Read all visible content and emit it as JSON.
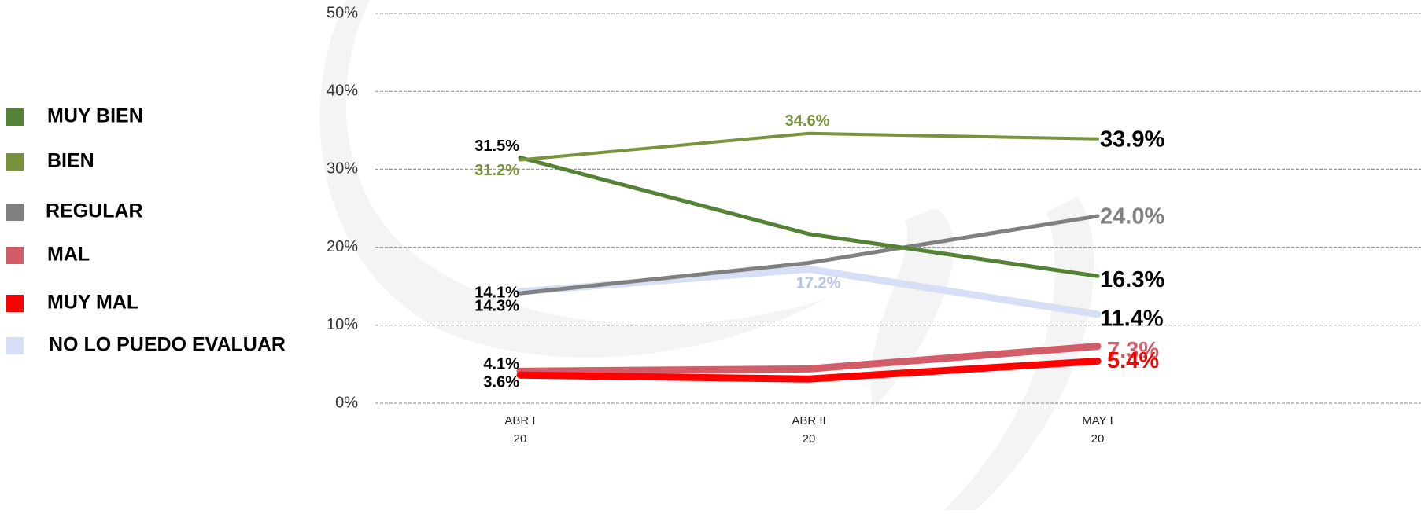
{
  "chart_data": {
    "type": "line",
    "categories": [
      [
        "ABR I",
        "20"
      ],
      [
        "ABR II",
        "20"
      ],
      [
        "MAY I",
        "20"
      ]
    ],
    "ylim": [
      0,
      50
    ],
    "yticks": [
      {
        "value": 0,
        "label": "0%"
      },
      {
        "value": 10,
        "label": "10%"
      },
      {
        "value": 20,
        "label": "20%"
      },
      {
        "value": 30,
        "label": "30%"
      },
      {
        "value": 40,
        "label": "40%"
      },
      {
        "value": 50,
        "label": "50%"
      }
    ],
    "grid": true,
    "legend": "left",
    "series": [
      {
        "name": "MUY BIEN",
        "color": "#548235",
        "values": [
          31.5,
          21.7,
          16.3
        ],
        "value_labels": [
          "31.5%",
          null,
          "16.3%"
        ],
        "label_colors": [
          "#000000",
          null,
          "#000000"
        ]
      },
      {
        "name": "BIEN",
        "color": "#77933c",
        "values": [
          31.2,
          34.6,
          33.9
        ],
        "value_labels": [
          "31.2%",
          "34.6%",
          "33.9%"
        ],
        "label_colors": [
          "#77933c",
          "#77933c",
          "#000000"
        ]
      },
      {
        "name": "REGULAR",
        "color": "#808080",
        "values": [
          14.1,
          18.0,
          24.0
        ],
        "value_labels": [
          "14.1%",
          null,
          "24.0%"
        ],
        "label_colors": [
          "#000000",
          null,
          "#808080"
        ]
      },
      {
        "name": "MAL",
        "color": "#d25c67",
        "values": [
          4.1,
          4.4,
          7.3
        ],
        "value_labels": [
          "4.1%",
          null,
          "7.3%"
        ],
        "label_colors": [
          "#000000",
          null,
          "#d25c67"
        ]
      },
      {
        "name": "MUY MAL",
        "color": "#ff0000",
        "values": [
          3.6,
          3.1,
          5.4
        ],
        "value_labels": [
          "3.6%",
          null,
          "5.4%"
        ],
        "label_colors": [
          "#000000",
          null,
          "#ff0000"
        ]
      },
      {
        "name": "NO LO PUEDO EVALUAR",
        "color": "#d6dff5",
        "values": [
          14.3,
          17.2,
          11.4
        ],
        "value_labels": [
          "14.3%",
          "17.2%",
          "11.4%"
        ],
        "label_colors": [
          "#000000",
          "#b4c3e8",
          "#000000"
        ]
      }
    ]
  }
}
